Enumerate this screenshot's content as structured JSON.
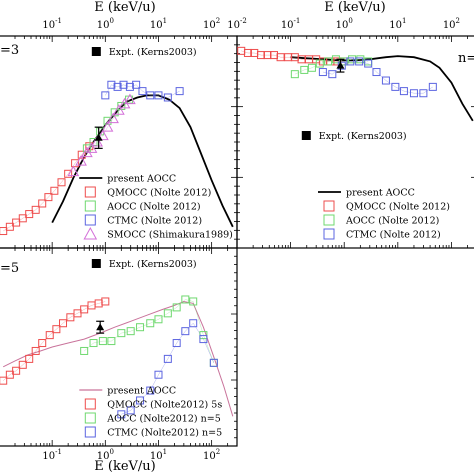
{
  "figure": {
    "top_axis_title": "E (keV/u)",
    "bottom_axis_title": "E (keV/u)"
  },
  "chart_data": [
    {
      "type": "scatter",
      "panel": "top-left",
      "panel_label": "=3",
      "x_scale": "log",
      "xlim": [
        0.01,
        300
      ],
      "top_ticks": [
        {
          "x": 0.1,
          "base": "10",
          "exp": "-1"
        },
        {
          "x": 1,
          "base": "10",
          "exp": "0"
        },
        {
          "x": 10,
          "base": "10",
          "exp": "1"
        },
        {
          "x": 100,
          "base": "10",
          "exp": "2"
        }
      ],
      "expt_legend": "Expt. (Kerns2003)",
      "expt_legend_pos": "top-center",
      "legend_pos": "bottom-center",
      "expt": {
        "x": 0.75,
        "y": 0.52,
        "err": 0.05
      },
      "series": [
        {
          "name": "present AOCC",
          "style": "line",
          "color": "#000000",
          "x": [
            0.1,
            0.16,
            0.25,
            0.4,
            0.6,
            1,
            1.6,
            2.5,
            4,
            6,
            10,
            16,
            25,
            40,
            60,
            100,
            160,
            250
          ],
          "y": [
            0.12,
            0.22,
            0.33,
            0.43,
            0.5,
            0.58,
            0.64,
            0.69,
            0.71,
            0.72,
            0.72,
            0.7,
            0.66,
            0.57,
            0.46,
            0.32,
            0.2,
            0.1
          ]
        },
        {
          "name": "QMOCC (Nolte 2012)",
          "style": "marker",
          "marker": "square",
          "color": "#ee4c4c",
          "x": [
            0.012,
            0.016,
            0.021,
            0.028,
            0.037,
            0.049,
            0.065,
            0.085,
            0.11,
            0.15,
            0.2,
            0.27,
            0.36,
            0.5
          ],
          "y": [
            0.08,
            0.1,
            0.12,
            0.14,
            0.16,
            0.18,
            0.21,
            0.24,
            0.27,
            0.31,
            0.35,
            0.4,
            0.44,
            0.48
          ]
        },
        {
          "name": "AOCC (Nolte 2012)",
          "style": "marker",
          "marker": "square",
          "color": "#6fd86f",
          "x": [
            0.45,
            0.6,
            0.8,
            1.1,
            1.5,
            2,
            2.8
          ],
          "y": [
            0.47,
            0.5,
            0.55,
            0.6,
            0.64,
            0.67,
            0.7
          ]
        },
        {
          "name": "CTMC (Nolte 2012)",
          "style": "marker",
          "marker": "square",
          "color": "#5b64e0",
          "x": [
            1,
            1.3,
            1.7,
            2.2,
            2.9,
            3.8,
            5,
            7,
            10,
            15,
            25
          ],
          "y": [
            0.72,
            0.77,
            0.76,
            0.77,
            0.76,
            0.77,
            0.74,
            0.72,
            0.72,
            0.71,
            0.74
          ]
        },
        {
          "name": "SMOCC (Shimakura1989)",
          "style": "marker",
          "marker": "triangle",
          "color": "#d36fd8",
          "x": [
            0.25,
            0.35,
            0.45,
            0.55,
            0.7,
            0.9,
            1.1,
            1.4,
            1.8,
            2.3,
            2.9
          ],
          "y": [
            0.36,
            0.41,
            0.45,
            0.47,
            0.5,
            0.53,
            0.57,
            0.61,
            0.65,
            0.68,
            0.7
          ]
        }
      ]
    },
    {
      "type": "scatter",
      "panel": "top-right",
      "panel_label": "n=",
      "x_scale": "log",
      "xlim": [
        0.01,
        300
      ],
      "top_ticks": [
        {
          "x": 0.01,
          "base": "10",
          "exp": "-2"
        },
        {
          "x": 0.1,
          "base": "10",
          "exp": "-1"
        },
        {
          "x": 1,
          "base": "10",
          "exp": "0"
        },
        {
          "x": 10,
          "base": "10",
          "exp": "1"
        },
        {
          "x": 100,
          "base": "10",
          "exp": "2"
        }
      ],
      "expt_legend": "Expt. (Kerns2003)",
      "expt_legend_pos": "center",
      "legend_pos": "bottom-center",
      "expt": {
        "x": 0.85,
        "y": 0.86,
        "err": 0.03
      },
      "series": [
        {
          "name": "present AOCC",
          "style": "line",
          "color": "#000000",
          "x": [
            0.1,
            0.2,
            0.4,
            0.8,
            1.5,
            3,
            6,
            10,
            20,
            40,
            60,
            100,
            160,
            250
          ],
          "y": [
            0.9,
            0.895,
            0.89,
            0.885,
            0.885,
            0.89,
            0.9,
            0.905,
            0.9,
            0.88,
            0.85,
            0.78,
            0.68,
            0.6
          ]
        },
        {
          "name": "QMOCC (Nolte 2012)",
          "style": "marker",
          "marker": "square",
          "color": "#ee4c4c",
          "x": [
            0.012,
            0.016,
            0.021,
            0.028,
            0.037,
            0.049,
            0.065,
            0.09,
            0.12,
            0.16,
            0.22,
            0.3,
            0.4,
            0.55,
            0.75,
            1
          ],
          "y": [
            0.93,
            0.92,
            0.92,
            0.91,
            0.91,
            0.91,
            0.9,
            0.9,
            0.9,
            0.89,
            0.89,
            0.89,
            0.88,
            0.88,
            0.88,
            0.88
          ]
        },
        {
          "name": "AOCC (Nolte 2012)",
          "style": "marker",
          "marker": "square",
          "color": "#6fd86f",
          "x": [
            0.12,
            0.18,
            0.25,
            0.35,
            0.5,
            0.7,
            1,
            1.4,
            2,
            2.8
          ],
          "y": [
            0.82,
            0.84,
            0.85,
            0.87,
            0.88,
            0.89,
            0.88,
            0.89,
            0.89,
            0.88
          ]
        },
        {
          "name": "CTMC (Nolte 2012)",
          "style": "marker",
          "marker": "square",
          "color": "#5b64e0",
          "x": [
            0.4,
            0.6,
            0.9,
            1.3,
            1.9,
            2.8,
            4,
            6,
            9,
            13,
            20,
            30,
            45
          ],
          "y": [
            0.83,
            0.82,
            0.86,
            0.88,
            0.88,
            0.87,
            0.83,
            0.79,
            0.76,
            0.74,
            0.73,
            0.73,
            0.76
          ]
        }
      ]
    },
    {
      "type": "scatter",
      "panel": "bottom-left",
      "panel_label": "=5",
      "x_scale": "log",
      "xlim": [
        0.01,
        300
      ],
      "bottom_ticks": [
        {
          "x": 0.1,
          "base": "10",
          "exp": "-1"
        },
        {
          "x": 1,
          "base": "10",
          "exp": "0"
        },
        {
          "x": 10,
          "base": "10",
          "exp": "1"
        },
        {
          "x": 100,
          "base": "10",
          "exp": "2"
        }
      ],
      "expt_legend": "Expt. (Kerns2003)",
      "expt_legend_pos": "top-center",
      "legend_pos": "bottom-center",
      "expt": {
        "x": 0.8,
        "y": 0.6,
        "err": 0.03
      },
      "series": [
        {
          "name": "present AOCC",
          "style": "line",
          "color": "#c9739b",
          "x": [
            0.012,
            0.02,
            0.035,
            0.06,
            0.1,
            0.2,
            0.4,
            0.8,
            1.5,
            3,
            6,
            12,
            20,
            30,
            45,
            70,
            110,
            170,
            250
          ],
          "y": [
            0.4,
            0.43,
            0.46,
            0.48,
            0.5,
            0.52,
            0.54,
            0.57,
            0.6,
            0.63,
            0.66,
            0.69,
            0.71,
            0.73,
            0.72,
            0.6,
            0.45,
            0.3,
            0.15
          ]
        },
        {
          "name": "QMOCC (Nolte2012) 5s",
          "style": "marker",
          "marker": "square",
          "color": "#ee4c4c",
          "x": [
            0.012,
            0.016,
            0.021,
            0.028,
            0.037,
            0.049,
            0.065,
            0.09,
            0.12,
            0.16,
            0.22,
            0.3,
            0.4,
            0.55,
            0.75,
            1
          ],
          "y": [
            0.33,
            0.36,
            0.38,
            0.41,
            0.44,
            0.48,
            0.52,
            0.56,
            0.59,
            0.62,
            0.65,
            0.67,
            0.69,
            0.71,
            0.72,
            0.73
          ]
        },
        {
          "name": "AOCC (Nolte2012) n=5",
          "style": "marker",
          "marker": "square",
          "color": "#6fd86f",
          "x": [
            0.4,
            0.6,
            0.9,
            1.3,
            2,
            3,
            4.5,
            7,
            10,
            15,
            22,
            32,
            45,
            70,
            110
          ],
          "y": [
            0.48,
            0.52,
            0.53,
            0.53,
            0.57,
            0.58,
            0.6,
            0.62,
            0.64,
            0.67,
            0.7,
            0.74,
            0.73,
            0.56,
            0.42
          ]
        },
        {
          "name": "CTMC (Nolte2012) n=5",
          "style": "marker",
          "marker": "square",
          "color": "#5b64e0",
          "x": [
            2,
            3,
            4.5,
            7,
            10,
            15,
            22,
            32,
            45,
            70,
            110
          ],
          "y": [
            0.16,
            0.18,
            0.23,
            0.28,
            0.36,
            0.44,
            0.52,
            0.58,
            0.62,
            0.54,
            0.42
          ]
        }
      ]
    }
  ]
}
